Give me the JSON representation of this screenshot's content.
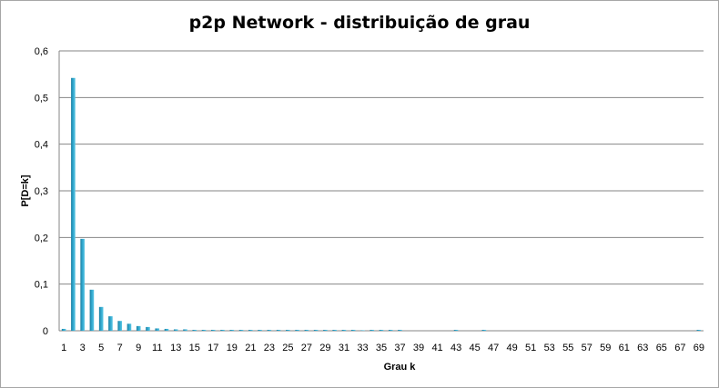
{
  "chart_data": {
    "type": "bar",
    "title": "p2p Network - distribuição de grau",
    "xlabel": "Grau k",
    "ylabel": "P[D=k]",
    "ylim": [
      0,
      0.6
    ],
    "yticks": [
      "0",
      "0,1",
      "0,2",
      "0,3",
      "0,4",
      "0,5",
      "0,6"
    ],
    "grid": true,
    "legend": "none",
    "bar_color": "#31a9cf",
    "categories": [
      1,
      2,
      3,
      4,
      5,
      6,
      7,
      8,
      9,
      10,
      11,
      12,
      13,
      14,
      15,
      16,
      17,
      18,
      19,
      20,
      21,
      22,
      23,
      24,
      25,
      26,
      27,
      28,
      29,
      30,
      31,
      32,
      33,
      34,
      35,
      36,
      37,
      38,
      39,
      40,
      41,
      42,
      43,
      44,
      45,
      46,
      47,
      48,
      49,
      50,
      51,
      52,
      53,
      54,
      55,
      56,
      57,
      58,
      59,
      60,
      61,
      62,
      63,
      64,
      65,
      66,
      67,
      68,
      69
    ],
    "x_tick_labels": [
      "1",
      "3",
      "5",
      "7",
      "9",
      "11",
      "13",
      "15",
      "17",
      "19",
      "21",
      "23",
      "25",
      "27",
      "29",
      "31",
      "33",
      "35",
      "37",
      "39",
      "41",
      "43",
      "45",
      "47",
      "49",
      "51",
      "53",
      "55",
      "57",
      "59",
      "61",
      "63",
      "65",
      "67",
      "69"
    ],
    "values": [
      0.004,
      0.542,
      0.197,
      0.088,
      0.051,
      0.031,
      0.021,
      0.015,
      0.01,
      0.008,
      0.005,
      0.004,
      0.003,
      0.003,
      0.002,
      0.002,
      0.002,
      0.002,
      0.002,
      0.002,
      0.002,
      0.002,
      0.002,
      0.002,
      0.002,
      0.002,
      0.002,
      0.002,
      0.002,
      0.002,
      0.002,
      0.002,
      0.001,
      0.002,
      0.002,
      0.002,
      0.002,
      0,
      0,
      0,
      0,
      0,
      0.002,
      0,
      0,
      0.002,
      0,
      0,
      0,
      0,
      0,
      0,
      0,
      0,
      0,
      0,
      0,
      0,
      0,
      0,
      0,
      0,
      0,
      0,
      0,
      0,
      0,
      0,
      0.002
    ]
  }
}
